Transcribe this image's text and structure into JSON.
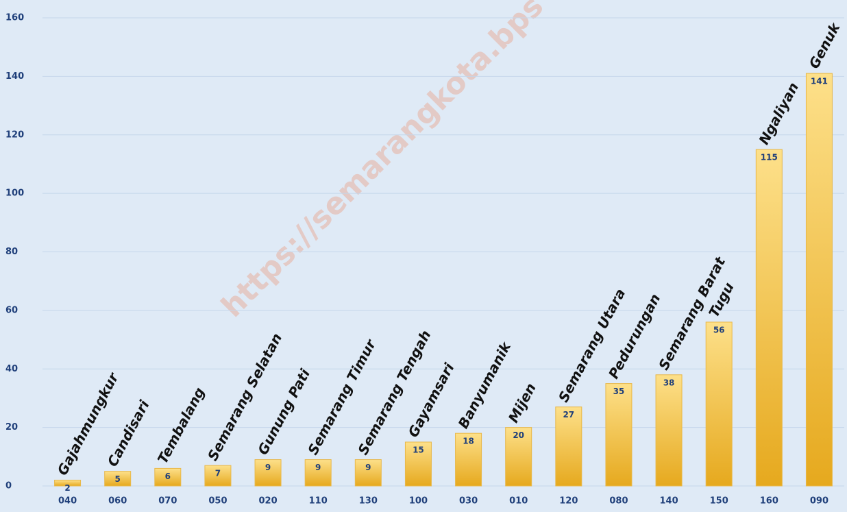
{
  "chart_data": {
    "type": "bar",
    "categories": [
      "040",
      "060",
      "070",
      "050",
      "020",
      "110",
      "130",
      "100",
      "030",
      "010",
      "120",
      "080",
      "140",
      "150",
      "160",
      "090"
    ],
    "names": [
      "Gajahmungkur",
      "Candisari",
      "Tembalang",
      "Semarang Selatan",
      "Gunung Pati",
      "Semarang Timur",
      "Semarang Tengah",
      "Gayamsari",
      "Banyumanik",
      "Mijen",
      "Semarang Utara",
      "Pedurungan",
      "Semarang Barat",
      "Tugu",
      "Ngaliyan",
      "Genuk"
    ],
    "values": [
      2,
      5,
      6,
      7,
      9,
      9,
      9,
      15,
      18,
      20,
      27,
      35,
      38,
      56,
      115,
      141
    ],
    "color": "#f0bc3a",
    "ylim": [
      0,
      160
    ],
    "yticks": [
      0,
      20,
      40,
      60,
      80,
      100,
      120,
      140,
      160
    ],
    "grid": true,
    "watermark": "https://semarangkota.bps"
  }
}
